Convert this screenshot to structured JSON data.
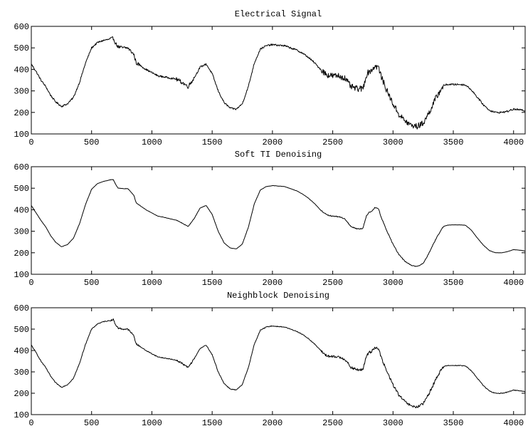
{
  "chart_data": [
    {
      "type": "line",
      "title": "Electrical Signal",
      "xlim": [
        0,
        4096
      ],
      "ylim": [
        100,
        600
      ],
      "xticks": [
        0,
        500,
        1000,
        1500,
        2000,
        2500,
        3000,
        3500,
        4000
      ],
      "yticks": [
        100,
        200,
        300,
        400,
        500,
        600
      ],
      "noise": 1.0,
      "series": [
        {
          "color": "#000000",
          "x": [
            0,
            40,
            80,
            120,
            160,
            200,
            250,
            300,
            350,
            400,
            450,
            500,
            550,
            600,
            650,
            680,
            700,
            720,
            760,
            800,
            850,
            870,
            900,
            950,
            1000,
            1050,
            1100,
            1150,
            1200,
            1250,
            1300,
            1350,
            1400,
            1450,
            1500,
            1550,
            1600,
            1650,
            1700,
            1750,
            1800,
            1850,
            1900,
            1950,
            2000,
            2050,
            2100,
            2150,
            2200,
            2250,
            2300,
            2350,
            2400,
            2450,
            2500,
            2550,
            2600,
            2650,
            2700,
            2750,
            2780,
            2800,
            2820,
            2850,
            2880,
            2900,
            2950,
            3000,
            3050,
            3100,
            3150,
            3200,
            3250,
            3300,
            3350,
            3400,
            3420,
            3450,
            3500,
            3550,
            3600,
            3650,
            3700,
            3750,
            3800,
            3850,
            3900,
            3950,
            4000,
            4050,
            4096
          ],
          "y": [
            425,
            390,
            350,
            320,
            280,
            250,
            228,
            240,
            270,
            340,
            430,
            500,
            525,
            535,
            540,
            545,
            520,
            505,
            500,
            500,
            470,
            430,
            420,
            400,
            385,
            370,
            365,
            360,
            355,
            340,
            320,
            360,
            410,
            425,
            380,
            300,
            245,
            220,
            215,
            240,
            320,
            430,
            495,
            510,
            515,
            512,
            510,
            500,
            490,
            475,
            455,
            430,
            400,
            375,
            370,
            370,
            360,
            320,
            310,
            310,
            375,
            390,
            395,
            415,
            410,
            370,
            300,
            240,
            190,
            160,
            140,
            135,
            150,
            200,
            260,
            310,
            325,
            330,
            330,
            330,
            328,
            305,
            270,
            235,
            210,
            200,
            200,
            205,
            215,
            212,
            208
          ]
        }
      ]
    },
    {
      "type": "line",
      "title": "Soft TI Denoising",
      "xlim": [
        0,
        4096
      ],
      "ylim": [
        100,
        600
      ],
      "xticks": [
        0,
        500,
        1000,
        1500,
        2000,
        2500,
        3000,
        3500,
        4000
      ],
      "yticks": [
        100,
        200,
        300,
        400,
        500,
        600
      ],
      "noise": 0.15,
      "series": [
        {
          "color": "#000000",
          "x": [
            0,
            40,
            80,
            120,
            160,
            200,
            250,
            300,
            350,
            400,
            450,
            500,
            550,
            600,
            650,
            680,
            700,
            720,
            760,
            800,
            850,
            870,
            900,
            950,
            1000,
            1050,
            1100,
            1150,
            1200,
            1250,
            1300,
            1350,
            1400,
            1450,
            1500,
            1550,
            1600,
            1650,
            1700,
            1750,
            1800,
            1850,
            1900,
            1950,
            2000,
            2050,
            2100,
            2150,
            2200,
            2250,
            2300,
            2350,
            2400,
            2450,
            2500,
            2550,
            2600,
            2650,
            2700,
            2750,
            2780,
            2800,
            2820,
            2850,
            2880,
            2900,
            2950,
            3000,
            3050,
            3100,
            3150,
            3200,
            3250,
            3300,
            3350,
            3400,
            3420,
            3450,
            3500,
            3550,
            3600,
            3650,
            3700,
            3750,
            3800,
            3850,
            3900,
            3950,
            4000,
            4050,
            4096
          ],
          "y": [
            420,
            385,
            350,
            320,
            280,
            250,
            228,
            238,
            268,
            335,
            425,
            495,
            522,
            532,
            538,
            540,
            518,
            500,
            498,
            498,
            468,
            432,
            420,
            400,
            385,
            370,
            365,
            358,
            352,
            338,
            322,
            358,
            408,
            420,
            378,
            300,
            245,
            222,
            218,
            240,
            318,
            428,
            492,
            508,
            512,
            510,
            508,
            498,
            488,
            473,
            453,
            428,
            398,
            376,
            370,
            368,
            358,
            322,
            312,
            312,
            372,
            388,
            392,
            410,
            405,
            368,
            300,
            240,
            190,
            160,
            142,
            136,
            150,
            200,
            258,
            308,
            322,
            328,
            330,
            330,
            328,
            305,
            268,
            235,
            210,
            200,
            200,
            205,
            215,
            212,
            208
          ]
        }
      ]
    },
    {
      "type": "line",
      "title": "Neighblock Denoising",
      "xlim": [
        0,
        4096
      ],
      "ylim": [
        100,
        600
      ],
      "xticks": [
        0,
        500,
        1000,
        1500,
        2000,
        2500,
        3000,
        3500,
        4000
      ],
      "yticks": [
        100,
        200,
        300,
        400,
        500,
        600
      ],
      "noise": 0.45,
      "series": [
        {
          "color": "#000000",
          "x": [
            0,
            40,
            80,
            120,
            160,
            200,
            250,
            300,
            350,
            400,
            450,
            500,
            550,
            600,
            650,
            680,
            700,
            720,
            760,
            800,
            850,
            870,
            900,
            950,
            1000,
            1050,
            1100,
            1150,
            1200,
            1250,
            1300,
            1350,
            1400,
            1450,
            1500,
            1550,
            1600,
            1650,
            1700,
            1750,
            1800,
            1850,
            1900,
            1950,
            2000,
            2050,
            2100,
            2150,
            2200,
            2250,
            2300,
            2350,
            2400,
            2450,
            2500,
            2550,
            2600,
            2650,
            2700,
            2750,
            2780,
            2800,
            2820,
            2850,
            2880,
            2900,
            2950,
            3000,
            3050,
            3100,
            3150,
            3200,
            3250,
            3300,
            3350,
            3400,
            3420,
            3450,
            3500,
            3550,
            3600,
            3650,
            3700,
            3750,
            3800,
            3850,
            3900,
            3950,
            4000,
            4050,
            4096
          ],
          "y": [
            425,
            390,
            350,
            320,
            280,
            250,
            228,
            240,
            270,
            340,
            430,
            500,
            525,
            535,
            540,
            545,
            520,
            505,
            500,
            500,
            470,
            430,
            420,
            400,
            385,
            370,
            365,
            360,
            355,
            340,
            320,
            360,
            410,
            425,
            380,
            300,
            245,
            220,
            215,
            240,
            320,
            430,
            495,
            510,
            515,
            512,
            510,
            500,
            490,
            475,
            455,
            430,
            400,
            375,
            370,
            370,
            360,
            320,
            310,
            310,
            375,
            390,
            395,
            415,
            410,
            370,
            300,
            240,
            190,
            160,
            140,
            135,
            150,
            200,
            260,
            310,
            325,
            330,
            330,
            330,
            328,
            305,
            270,
            235,
            210,
            200,
            200,
            205,
            215,
            212,
            208
          ]
        }
      ]
    }
  ]
}
